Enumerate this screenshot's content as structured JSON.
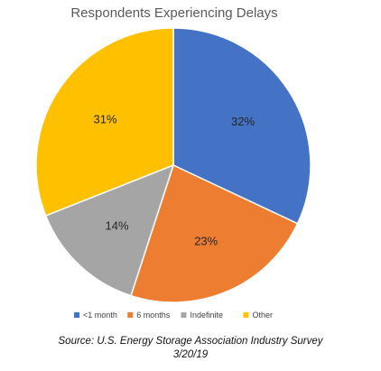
{
  "chart_data": {
    "type": "pie",
    "title": "Respondents Experiencing Delays",
    "categories": [
      "<1 month",
      "6 months",
      "Indefinite",
      "Other"
    ],
    "values": [
      32,
      23,
      14,
      31
    ],
    "value_labels": [
      "32%",
      "23%",
      "14%",
      "31%"
    ],
    "colors": [
      "#4472C4",
      "#ED7D31",
      "#A5A5A5",
      "#FFC000"
    ],
    "start_angle": "12 o'clock",
    "direction": "clockwise",
    "legend": "bottom"
  },
  "source": {
    "line1": "Source: U.S. Energy Storage Association Industry Survey",
    "line2": "3/20/19"
  }
}
